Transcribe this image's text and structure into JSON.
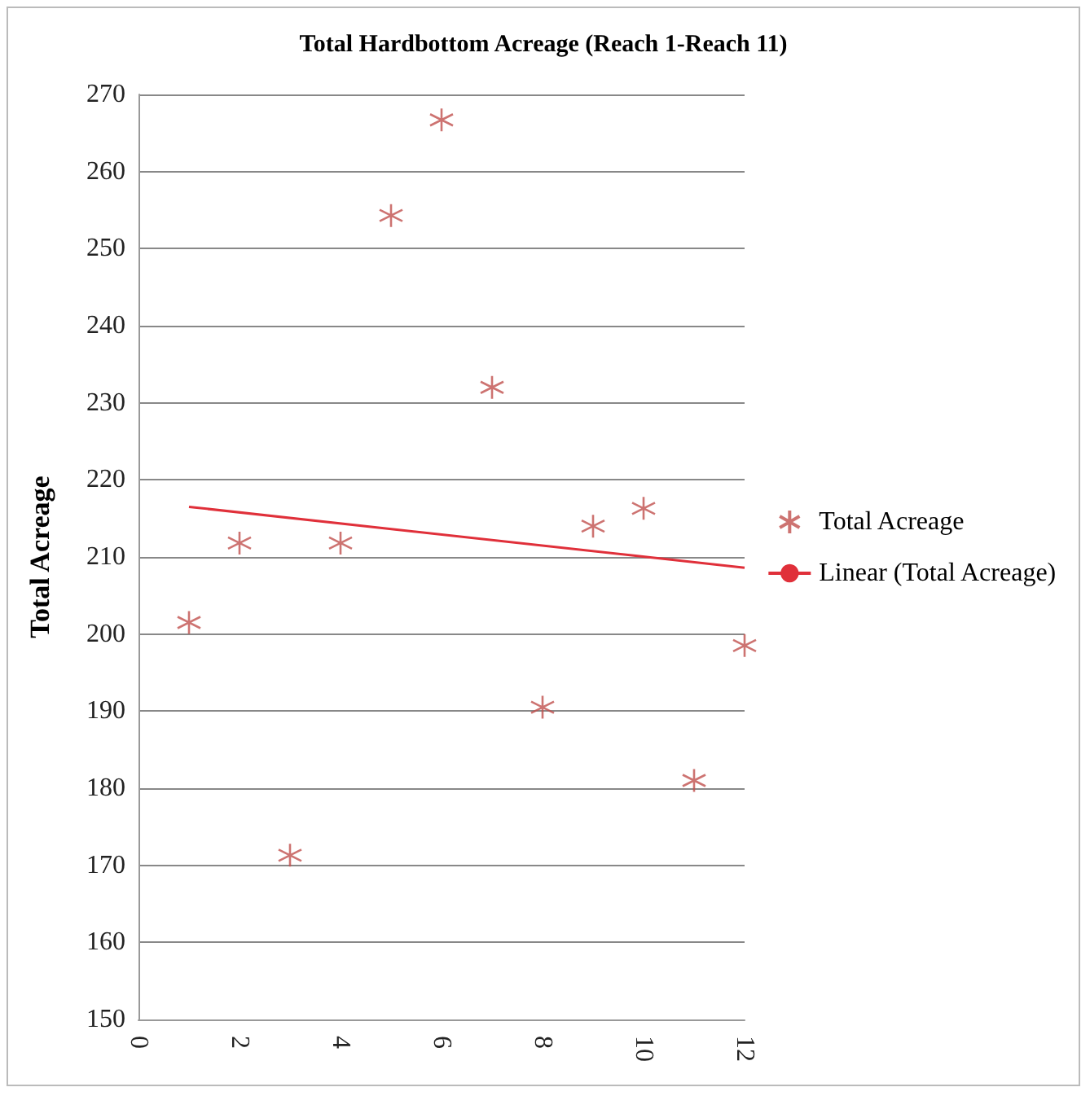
{
  "chart_data": {
    "type": "scatter",
    "title": "Total Hardbottom Acreage (Reach 1-Reach 11)",
    "ylabel": "Total Acreage",
    "series": [
      {
        "name": "Total Acreage",
        "marker": "cross",
        "color": "#c0504d",
        "x": [
          1,
          2,
          3,
          4,
          5,
          6,
          7,
          8,
          9,
          10,
          11,
          12
        ],
        "values": [
          201.5,
          211.8,
          171.3,
          211.8,
          254.3,
          266.7,
          232,
          190.5,
          214,
          216.3,
          181,
          198.5
        ]
      },
      {
        "name": "Linear (Total Acreage)",
        "type": "line",
        "marker": "none",
        "color": "#e0303a",
        "x": [
          1,
          12
        ],
        "values": [
          216.5,
          208.6
        ]
      }
    ],
    "xlim": [
      0,
      12
    ],
    "xticks": [
      0,
      2,
      4,
      6,
      8,
      10,
      12
    ],
    "ylim": [
      150,
      270
    ],
    "yticks": [
      150,
      160,
      170,
      180,
      190,
      200,
      210,
      220,
      230,
      240,
      250,
      260,
      270
    ],
    "grid": "y",
    "legend": "right"
  }
}
